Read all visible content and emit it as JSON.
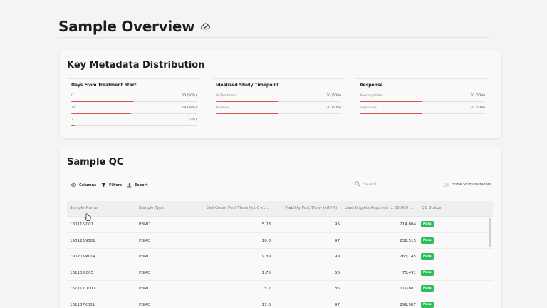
{
  "page": {
    "title": "Sample Overview",
    "title_icon": "cloud-icon"
  },
  "metadata": {
    "title": "Key Metadata Distribution",
    "panels": [
      {
        "title": "Days From Treatment Start",
        "rows": [
          {
            "label": "0",
            "value": "20 (50%)",
            "fraction": 0.5
          },
          {
            "label": "14",
            "value": "19 (48%)",
            "fraction": 0.48
          },
          {
            "label": "7",
            "value": "1 (3%)",
            "fraction": 0.03
          }
        ]
      },
      {
        "title": "Idealized Study Timepoint",
        "rows": [
          {
            "label": "OnTreatment",
            "value": "20 (50%)",
            "fraction": 0.5
          },
          {
            "label": "Baseline",
            "value": "20 (50%)",
            "fraction": 0.5
          }
        ]
      },
      {
        "title": "Response",
        "rows": [
          {
            "label": "Nonresponder",
            "value": "20 (50%)",
            "fraction": 0.5
          },
          {
            "label": "Responder",
            "value": "20 (50%)",
            "fraction": 0.5
          }
        ]
      }
    ]
  },
  "qc": {
    "title": "Sample QC",
    "toolbar": {
      "columns_label": "Columns",
      "filters_label": "Filters",
      "export_label": "Export"
    },
    "search": {
      "placeholder": "Search..."
    },
    "toggle_label": "Show Study Metadata",
    "columns": [
      "Sample Name",
      "Sample Type",
      "Cell Count Post Thaw (x1.0 x1...",
      "Viability Post Thaw (x80%)",
      "Live Singlets Acquired (x 50,000 ...",
      "QC Status"
    ],
    "rows": [
      [
        "180116J001",
        "PBMC",
        "5.03",
        "96",
        "214,804",
        "Pass"
      ],
      [
        "190125N001",
        "PBMC",
        "10.8",
        "97",
        "232,515",
        "Pass"
      ],
      [
        "190205M004",
        "PBMC",
        "9.39",
        "99",
        "263,145",
        "Pass"
      ],
      [
        "161103J005",
        "PBMC",
        "1.75",
        "56",
        "75,491",
        "Pass"
      ],
      [
        "161117O001",
        "PBMC",
        "5.2",
        "86",
        "119,887",
        "Pass"
      ],
      [
        "161107K001",
        "PBMC",
        "17.6",
        "97",
        "299,987",
        "Pass"
      ]
    ]
  },
  "colors": {
    "bar": "#d9534f",
    "pass": "#2dbd5a"
  }
}
